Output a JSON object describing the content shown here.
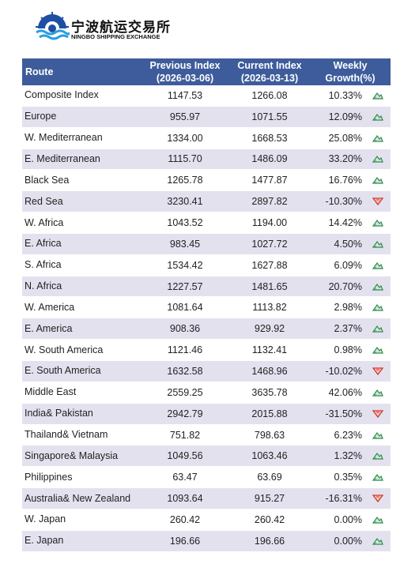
{
  "header": {
    "title": "宁波航运交易所",
    "subtitle": "NINGBO SHIPPING EXCHANGE"
  },
  "table": {
    "columns": [
      [
        "Route"
      ],
      [
        "Previous Index",
        "(2026-03-06)"
      ],
      [
        "Current Index",
        "(2026-03-13)"
      ],
      [
        "Weekly",
        "Growth(%)"
      ]
    ],
    "rows": [
      [
        "Composite Index",
        "1147.53",
        "1266.08",
        "10.33%"
      ],
      [
        "Europe",
        "955.97",
        "1071.55",
        "12.09%"
      ],
      [
        "W. Mediterranean",
        "1334.00",
        "1668.53",
        "25.08%"
      ],
      [
        "E. Mediterranean",
        "1115.70",
        "1486.09",
        "33.20%"
      ],
      [
        "Black Sea",
        "1265.78",
        "1477.87",
        "16.76%"
      ],
      [
        "Red Sea",
        "3230.41",
        "2897.82",
        "-10.30%"
      ],
      [
        "W. Africa",
        "1043.52",
        "1194.00",
        "14.42%"
      ],
      [
        "E. Africa",
        "983.45",
        "1027.72",
        "4.50%"
      ],
      [
        "S. Africa",
        "1534.42",
        "1627.88",
        "6.09%"
      ],
      [
        "N. Africa",
        "1227.57",
        "1481.65",
        "20.70%"
      ],
      [
        "W. America",
        "1081.64",
        "1113.82",
        "2.98%"
      ],
      [
        "E. America",
        "908.36",
        "929.92",
        "2.37%"
      ],
      [
        "W. South America",
        "1121.46",
        "1132.41",
        "0.98%"
      ],
      [
        "E. South America",
        "1632.58",
        "1468.96",
        "-10.02%"
      ],
      [
        "Middle East",
        "2559.25",
        "3635.78",
        "42.06%"
      ],
      [
        "India& Pakistan",
        "2942.79",
        "2015.88",
        "-31.50%"
      ],
      [
        "Thailand& Vietnam",
        "751.82",
        "798.63",
        "6.23%"
      ],
      [
        "Singapore& Malaysia",
        "1049.56",
        "1063.46",
        "1.32%"
      ],
      [
        "Philippines",
        "63.47",
        "63.69",
        "0.35%"
      ],
      [
        "Australia& New Zealand",
        "1093.64",
        "915.27",
        "-16.31%"
      ],
      [
        "W. Japan",
        "260.42",
        "260.42",
        "0.00%"
      ],
      [
        "E. Japan",
        "196.66",
        "196.66",
        "0.00%"
      ]
    ]
  }
}
